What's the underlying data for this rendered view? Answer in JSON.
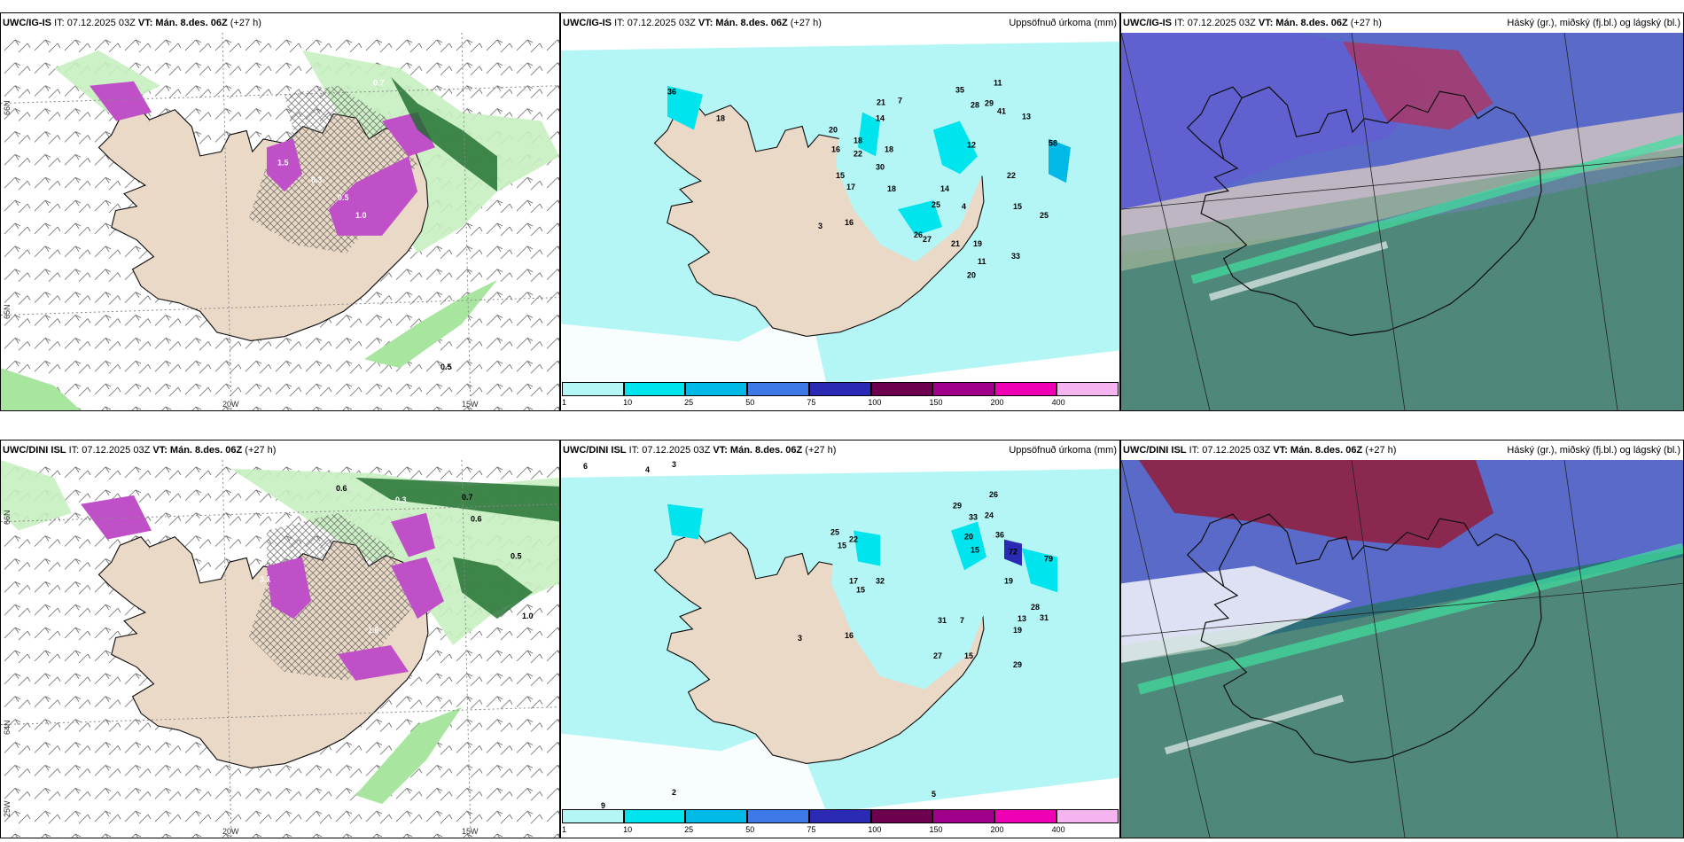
{
  "rows": [
    {
      "model": "UWC/IG-IS",
      "panels": [
        {
          "kind": "wind",
          "model": "UWC/IG-IS",
          "it": "IT: 07.12.2025 03Z",
          "vt_label": "VT:",
          "vt": "Mán. 8.des. 06Z",
          "lead": "(+27 h)",
          "right": ""
        },
        {
          "kind": "precip",
          "model": "UWC/IG-IS",
          "it": "IT: 07.12.2025 03Z",
          "vt_label": "VT:",
          "vt": "Mán. 8.des. 06Z",
          "lead": "(+27 h)",
          "right": "Uppsöfnuð úrkoma (mm)"
        },
        {
          "kind": "cloud",
          "model": "UWC/IG-IS",
          "it": "IT: 07.12.2025 03Z",
          "vt_label": "VT:",
          "vt": "Mán. 8.des. 06Z",
          "lead": "(+27 h)",
          "right": "Háský (gr.), miðský (fj.bl.) og lágský (bl.)"
        }
      ]
    },
    {
      "model": "UWC/DINI ISL",
      "panels": [
        {
          "kind": "wind",
          "model": "UWC/DINI ISL",
          "it": "IT: 07.12.2025 03Z",
          "vt_label": "VT:",
          "vt": "Mán. 8.des. 06Z",
          "lead": "(+27 h)",
          "right": ""
        },
        {
          "kind": "precip",
          "model": "UWC/DINI ISL",
          "it": "IT: 07.12.2025 03Z",
          "vt_label": "VT:",
          "vt": "Mán. 8.des. 06Z",
          "lead": "(+27 h)",
          "right": "Uppsöfnuð úrkoma (mm)"
        },
        {
          "kind": "cloud",
          "model": "UWC/DINI ISL",
          "it": "IT: 07.12.2025 03Z",
          "vt_label": "VT:",
          "vt": "Mán. 8.des. 06Z",
          "lead": "(+27 h)",
          "right": "Háský (gr.), miðský (fj.bl.) og lágský (bl.)"
        }
      ]
    }
  ],
  "axis": {
    "lon_a": "20W",
    "lon_b": "15W",
    "lat_a": "66N",
    "lat_b": "65N",
    "lat_c": "64N",
    "lat_d": "25W"
  },
  "colorbar": {
    "ticks": [
      "1",
      "10",
      "25",
      "50",
      "75",
      "100",
      "150",
      "200",
      "400"
    ],
    "colors": [
      "#b4f5f5",
      "#00e4ee",
      "#00b9e6",
      "#3c78e6",
      "#2a2ab4",
      "#6e0050",
      "#a0008c",
      "#f000b4",
      "#f5b4f0"
    ]
  },
  "precip_labels_top": [
    "35",
    "11",
    "28",
    "29",
    "41",
    "58",
    "36",
    "18",
    "7",
    "21",
    "20",
    "16",
    "18",
    "14",
    "22",
    "30",
    "18",
    "17",
    "15",
    "18",
    "12",
    "22",
    "14",
    "25",
    "4",
    "15",
    "25",
    "26",
    "27",
    "21",
    "19",
    "33",
    "11",
    "20",
    "13",
    "3",
    "16"
  ],
  "precip_labels_bottom": [
    "6",
    "4",
    "3",
    "29",
    "26",
    "33",
    "24",
    "20",
    "36",
    "15",
    "19",
    "72",
    "79",
    "28",
    "31",
    "15",
    "25",
    "22",
    "32",
    "17",
    "15",
    "31",
    "7",
    "13",
    "19",
    "27",
    "15",
    "29",
    "16",
    "3",
    "2",
    "9",
    "9",
    "5"
  ],
  "wind_labels_top": [
    "0.3",
    "0.5",
    "1.5",
    "1.0",
    "0.7",
    "0.5"
  ],
  "wind_labels_bottom": [
    "0.6",
    "0.3",
    "0.7",
    "0.6",
    "0.5",
    "1.0",
    "3.1",
    "1.8"
  ],
  "colors": {
    "land": "#ead9c6",
    "sea": "#ffffff",
    "precip_light": "#b4f5f5",
    "precip_med": "#00e4ee",
    "green_light": "#c8f0c0",
    "green": "#5ec86a",
    "green_dark": "#1a6a2a",
    "purple": "#c050c8",
    "hatch": "#555555"
  }
}
